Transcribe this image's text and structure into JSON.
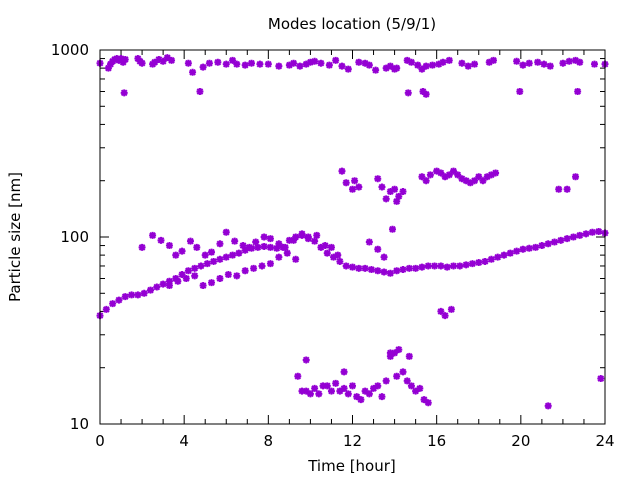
{
  "chart_data": {
    "type": "scatter",
    "title": "Modes location (5/9/1)",
    "xlabel": "Time [hour]",
    "ylabel": "Particle size [nm]",
    "xlim": [
      0,
      24
    ],
    "ylim": [
      10,
      1000
    ],
    "y_scale": "log",
    "x_ticks": [
      0,
      4,
      8,
      12,
      16,
      20,
      24
    ],
    "x_tick_labels": [
      "0",
      "4",
      "8",
      "12",
      "16",
      "20",
      "24"
    ],
    "y_ticks": [
      10,
      100,
      1000
    ],
    "y_tick_labels": [
      "10",
      "100",
      "1000"
    ],
    "grid": false,
    "marker": "asterisk",
    "color": "#9400d3",
    "series": [
      {
        "x": [
          0,
          0.4,
          0.5,
          0.6,
          0.7,
          0.8,
          0.9,
          1.0,
          1.1,
          1.2,
          1.8,
          1.9,
          2.0,
          2.5,
          2.6,
          2.8,
          3.0,
          3.2,
          3.4,
          4.2,
          4.4,
          4.9,
          5.2,
          5.6,
          6.0,
          6.3,
          6.5,
          6.9,
          7.2,
          7.6,
          8.0,
          8.5,
          9.0,
          9.2,
          9.5,
          9.8,
          10.0,
          10.2,
          10.5,
          10.9,
          11.2,
          11.5,
          11.8,
          12.3,
          12.6,
          12.8,
          13.1,
          13.6,
          13.8,
          14.0,
          14.1,
          14.6,
          14.8,
          15.1,
          15.3,
          15.5,
          15.8,
          16.1,
          16.3,
          16.6,
          17.2,
          17.5,
          17.8,
          18.5,
          18.7,
          19.8,
          20.1,
          20.4,
          20.8,
          21.1,
          21.4,
          22.0,
          22.3,
          22.6,
          22.8,
          23.5,
          24.0,
          1.15,
          4.75,
          14.65,
          15.35,
          15.5,
          19.95,
          22.7
        ],
        "y": [
          850,
          800,
          840,
          870,
          890,
          900,
          880,
          900,
          860,
          890,
          900,
          870,
          850,
          840,
          860,
          890,
          870,
          910,
          880,
          850,
          760,
          810,
          850,
          860,
          840,
          880,
          840,
          830,
          850,
          840,
          840,
          820,
          830,
          850,
          820,
          840,
          860,
          870,
          850,
          830,
          880,
          820,
          790,
          860,
          850,
          830,
          780,
          800,
          820,
          790,
          800,
          880,
          860,
          830,
          790,
          820,
          830,
          840,
          860,
          880,
          850,
          820,
          840,
          860,
          880,
          870,
          830,
          850,
          860,
          840,
          820,
          850,
          870,
          880,
          860,
          840,
          840,
          590,
          600,
          590,
          600,
          580,
          600,
          600
        ]
      },
      {
        "x": [
          11.5,
          11.7,
          12.0,
          12.1,
          12.3,
          13.2,
          13.4,
          13.6,
          13.8,
          14.0,
          14.1,
          14.2,
          14.4,
          15.3,
          15.5,
          15.7,
          16.0,
          16.2,
          16.4,
          16.6,
          16.8,
          17.0,
          17.2,
          17.4,
          17.6,
          17.8,
          18.0,
          18.2,
          18.4,
          18.6,
          18.8,
          21.8,
          22.2,
          22.6,
          13.9
        ],
        "y": [
          225,
          195,
          180,
          200,
          185,
          205,
          185,
          160,
          175,
          180,
          155,
          165,
          175,
          210,
          200,
          215,
          225,
          220,
          210,
          215,
          225,
          215,
          205,
          200,
          195,
          200,
          210,
          200,
          210,
          215,
          220,
          180,
          180,
          210,
          110
        ]
      },
      {
        "x": [
          0,
          0.3,
          0.6,
          0.9,
          1.2,
          1.5,
          1.8,
          2.1,
          2.4,
          2.7,
          3.0,
          3.3,
          3.6,
          3.9,
          4.2,
          4.5,
          4.8,
          5.1,
          5.4,
          5.7,
          6.0,
          6.3,
          6.6,
          6.9,
          7.2,
          7.5,
          7.8,
          8.1,
          8.4,
          8.7,
          9.0,
          9.3,
          9.6,
          9.9,
          10.2,
          10.5,
          10.8,
          11.1,
          11.4,
          11.7,
          12.0,
          12.3,
          12.6,
          12.9,
          13.2,
          13.5,
          13.8,
          14.1,
          14.4,
          14.7,
          15.0,
          15.3,
          15.6,
          15.9,
          16.2,
          16.5,
          16.8,
          17.1,
          17.4,
          17.7,
          18.0,
          18.3,
          18.6,
          18.9,
          19.2,
          19.5,
          19.8,
          20.1,
          20.4,
          20.7,
          21.0,
          21.3,
          21.6,
          21.9,
          22.2,
          22.5,
          22.8,
          23.1,
          23.4,
          23.7,
          24.0
        ],
        "y": [
          38,
          41,
          44,
          46,
          48,
          49,
          49,
          50,
          52,
          54,
          56,
          58,
          60,
          63,
          66,
          68,
          70,
          72,
          74,
          76,
          78,
          80,
          82,
          85,
          87,
          88,
          89,
          88,
          87,
          88,
          96,
          100,
          102,
          100,
          95,
          88,
          82,
          78,
          74,
          70,
          69,
          68,
          68,
          67,
          66,
          65,
          64,
          66,
          67,
          68,
          68,
          69,
          70,
          70,
          70,
          69,
          70,
          70,
          71,
          72,
          73,
          74,
          76,
          78,
          80,
          82,
          84,
          86,
          87,
          88,
          90,
          92,
          94,
          96,
          98,
          100,
          102,
          104,
          106,
          107,
          105
        ]
      },
      {
        "x": [
          2.0,
          2.5,
          2.9,
          3.3,
          3.6,
          3.9,
          4.3,
          4.6,
          5.0,
          5.3,
          5.7,
          6.0,
          6.4,
          6.8,
          7.1,
          7.4,
          7.8,
          8.1,
          8.5,
          8.8,
          9.2,
          9.6,
          9.9,
          10.3,
          10.7,
          11.0,
          11.3,
          12.8,
          13.2,
          13.5
        ],
        "y": [
          88,
          102,
          96,
          90,
          80,
          84,
          95,
          88,
          80,
          83,
          92,
          106,
          95,
          90,
          88,
          94,
          100,
          98,
          92,
          88,
          96,
          104,
          98,
          102,
          90,
          88,
          80,
          94,
          86,
          78
        ]
      },
      {
        "x": [
          3.3,
          3.7,
          4.1,
          4.5,
          4.9,
          5.3,
          5.7,
          6.1,
          6.5,
          6.9,
          7.3,
          7.7,
          8.1,
          8.5,
          8.9,
          9.3
        ],
        "y": [
          55,
          58,
          60,
          62,
          55,
          57,
          60,
          63,
          62,
          66,
          68,
          70,
          72,
          78,
          82,
          76
        ]
      },
      {
        "x": [
          16.2,
          16.4,
          16.7
        ],
        "y": [
          40,
          38,
          41
        ]
      },
      {
        "x": [
          9.4,
          9.6,
          9.8,
          10.0,
          10.2,
          10.4,
          10.6,
          10.8,
          11.0,
          11.2,
          11.4,
          11.6,
          11.8,
          12.0,
          12.2,
          12.4,
          12.6,
          12.8,
          13.0,
          13.2,
          13.4,
          13.6,
          13.8,
          14.0,
          14.2,
          14.4,
          14.6,
          14.8,
          15.0,
          15.2,
          15.4,
          15.6,
          9.8,
          11.6,
          13.8,
          14.1,
          14.7,
          21.3,
          23.8
        ],
        "y": [
          18,
          15,
          15,
          14.5,
          15.5,
          14.5,
          16,
          16,
          15,
          16.5,
          15,
          15.5,
          14.5,
          16,
          14,
          13.5,
          15,
          14.5,
          15.5,
          16,
          14,
          17,
          23,
          24,
          25,
          19,
          17,
          16,
          15,
          15.5,
          13.5,
          13,
          22,
          19,
          24,
          18,
          23,
          12.5,
          17.5
        ]
      }
    ]
  }
}
